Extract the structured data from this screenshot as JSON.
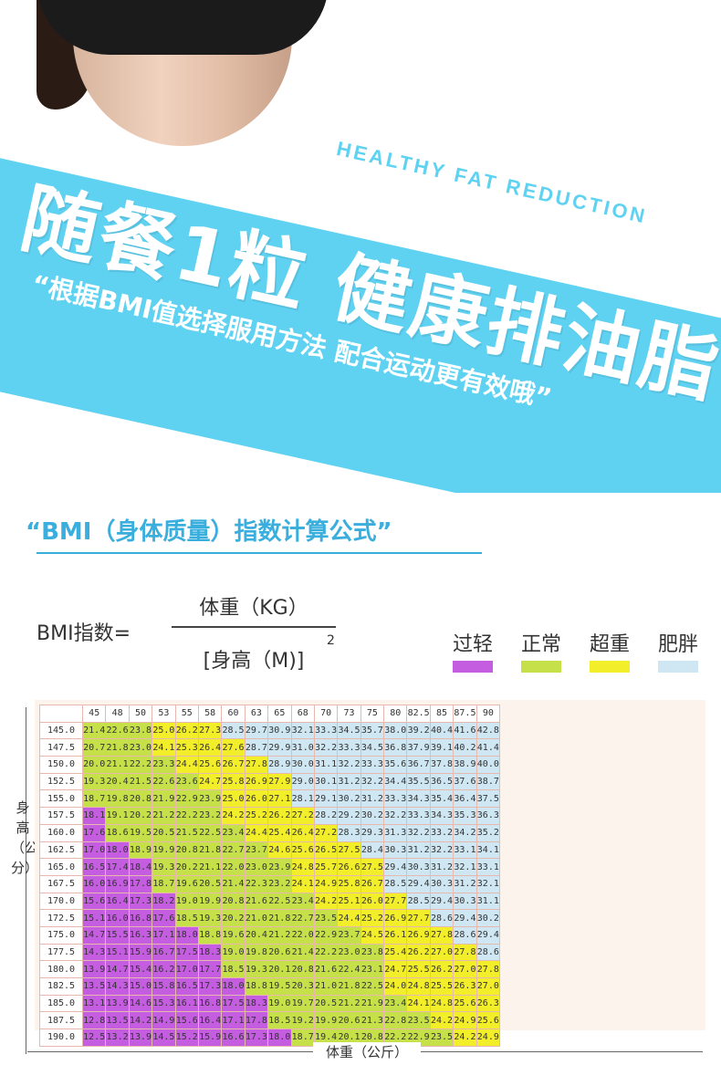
{
  "hero": {
    "english_title": "HEALTHY FAT REDUCTION",
    "main_title": "随餐1粒 健康排油脂",
    "subtitle": "“根据BMI值选择服用方法 配合运动更有效哦”"
  },
  "formula": {
    "section_title": "“BMI（身体质量）指数计算公式”",
    "bmi_label": "BMI指数=",
    "numerator": "体重（KG）",
    "denominator": "[身高（M)]",
    "power": "2"
  },
  "legend": [
    {
      "label": "过轻",
      "color": "#c55de0"
    },
    {
      "label": "正常",
      "color": "#c6e04a"
    },
    {
      "label": "超重",
      "color": "#f3ee2a"
    },
    {
      "label": "肥胖",
      "color": "#cfe7f3"
    }
  ],
  "table": {
    "y_axis_label": "身高（公分）",
    "x_axis_label": "体重（公斤）",
    "weights": [
      "45",
      "48",
      "50",
      "53",
      "55",
      "58",
      "60",
      "63",
      "65",
      "68",
      "70",
      "73",
      "75",
      "80",
      "82.5",
      "85",
      "87.5",
      "90"
    ],
    "rows": [
      {
        "height": "145.0",
        "values": [
          "21.4",
          "22.6",
          "23.8",
          "25.0",
          "26.2",
          "27.3",
          "28.5",
          "29.7",
          "30.9",
          "32.1",
          "33.3",
          "34.5",
          "35.7",
          "38.0",
          "39.2",
          "40.4",
          "41.6",
          "42.8"
        ]
      },
      {
        "height": "147.5",
        "values": [
          "20.7",
          "21.8",
          "23.0",
          "24.1",
          "25.3",
          "26.4",
          "27.6",
          "28.7",
          "29.9",
          "31.0",
          "32.2",
          "33.3",
          "34.5",
          "36.8",
          "37.9",
          "39.1",
          "40.2",
          "41.4"
        ]
      },
      {
        "height": "150.0",
        "values": [
          "20.0",
          "21.1",
          "22.2",
          "23.3",
          "24.4",
          "25.6",
          "26.7",
          "27.8",
          "28.9",
          "30.0",
          "31.1",
          "32.2",
          "33.3",
          "35.6",
          "36.7",
          "37.8",
          "38.9",
          "40.0"
        ]
      },
      {
        "height": "152.5",
        "values": [
          "19.3",
          "20.4",
          "21.5",
          "22.6",
          "23.6",
          "24.7",
          "25.8",
          "26.9",
          "27.9",
          "29.0",
          "30.1",
          "31.2",
          "32.2",
          "34.4",
          "35.5",
          "36.5",
          "37.6",
          "38.7"
        ]
      },
      {
        "height": "155.0",
        "values": [
          "18.7",
          "19.8",
          "20.8",
          "21.9",
          "22.9",
          "23.9",
          "25.0",
          "26.0",
          "27.1",
          "28.1",
          "29.1",
          "30.2",
          "31.2",
          "33.3",
          "34.3",
          "35.4",
          "36.4",
          "37.5"
        ]
      },
      {
        "height": "157.5",
        "values": [
          "18.1",
          "19.1",
          "20.2",
          "21.2",
          "22.2",
          "23.2",
          "24.2",
          "25.2",
          "26.2",
          "27.2",
          "28.2",
          "29.2",
          "30.2",
          "32.2",
          "33.3",
          "34.3",
          "35.3",
          "36.3"
        ]
      },
      {
        "height": "160.0",
        "values": [
          "17.6",
          "18.6",
          "19.5",
          "20.5",
          "21.5",
          "22.5",
          "23.4",
          "24.4",
          "25.4",
          "26.4",
          "27.2",
          "28.3",
          "29.3",
          "31.3",
          "32.2",
          "33.2",
          "34.2",
          "35.2"
        ]
      },
      {
        "height": "162.5",
        "values": [
          "17.0",
          "18.0",
          "18.9",
          "19.9",
          "20.8",
          "21.8",
          "22.7",
          "23.7",
          "24.6",
          "25.6",
          "26.5",
          "27.5",
          "28.4",
          "30.3",
          "31.2",
          "32.2",
          "33.1",
          "34.1"
        ]
      },
      {
        "height": "165.0",
        "values": [
          "16.5",
          "17.4",
          "18.4",
          "19.3",
          "20.2",
          "21.1",
          "22.0",
          "23.0",
          "23.9",
          "24.8",
          "25.7",
          "26.6",
          "27.5",
          "29.4",
          "30.3",
          "31.2",
          "32.1",
          "33.1"
        ]
      },
      {
        "height": "167.5",
        "values": [
          "16.0",
          "16.9",
          "17.8",
          "18.7",
          "19.6",
          "20.5",
          "21.4",
          "22.3",
          "23.2",
          "24.1",
          "24.9",
          "25.8",
          "26.7",
          "28.5",
          "29.4",
          "30.3",
          "31.2",
          "32.1"
        ]
      },
      {
        "height": "170.0",
        "values": [
          "15.6",
          "16.4",
          "17.3",
          "18.2",
          "19.0",
          "19.9",
          "20.8",
          "21.6",
          "22.5",
          "23.4",
          "24.2",
          "25.1",
          "26.0",
          "27.7",
          "28.5",
          "29.4",
          "30.3",
          "31.1"
        ]
      },
      {
        "height": "172.5",
        "values": [
          "15.1",
          "16.0",
          "16.8",
          "17.6",
          "18.5",
          "19.3",
          "20.2",
          "21.0",
          "21.8",
          "22.7",
          "23.5",
          "24.4",
          "25.2",
          "26.9",
          "27.7",
          "28.6",
          "29.4",
          "30.2"
        ]
      },
      {
        "height": "175.0",
        "values": [
          "14.7",
          "15.5",
          "16.3",
          "17.1",
          "18.0",
          "18.8",
          "19.6",
          "20.4",
          "21.2",
          "22.0",
          "22.9",
          "23.7",
          "24.5",
          "26.1",
          "26.9",
          "27.8",
          "28.6",
          "29.4"
        ]
      },
      {
        "height": "177.5",
        "values": [
          "14.3",
          "15.1",
          "15.9",
          "16.7",
          "17.5",
          "18.3",
          "19.0",
          "19.8",
          "20.6",
          "21.4",
          "22.2",
          "23.0",
          "23.8",
          "25.4",
          "26.2",
          "27.0",
          "27.8",
          "28.6"
        ]
      },
      {
        "height": "180.0",
        "values": [
          "13.9",
          "14.7",
          "15.4",
          "16.2",
          "17.0",
          "17.7",
          "18.5",
          "19.3",
          "20.1",
          "20.8",
          "21.6",
          "22.4",
          "23.1",
          "24.7",
          "25.5",
          "26.2",
          "27.0",
          "27.8"
        ]
      },
      {
        "height": "182.5",
        "values": [
          "13.5",
          "14.3",
          "15.0",
          "15.8",
          "16.5",
          "17.3",
          "18.0",
          "18.8",
          "19.5",
          "20.3",
          "21.0",
          "21.8",
          "22.5",
          "24.0",
          "24.8",
          "25.5",
          "26.3",
          "27.0"
        ]
      },
      {
        "height": "185.0",
        "values": [
          "13.1",
          "13.9",
          "14.6",
          "15.3",
          "16.1",
          "16.8",
          "17.5",
          "18.3",
          "19.0",
          "19.7",
          "20.5",
          "21.2",
          "21.9",
          "23.4",
          "24.1",
          "24.8",
          "25.6",
          "26.3"
        ]
      },
      {
        "height": "187.5",
        "values": [
          "12.8",
          "13.5",
          "14.2",
          "14.9",
          "15.6",
          "16.4",
          "17.1",
          "17.8",
          "18.5",
          "19.2",
          "19.9",
          "20.6",
          "21.3",
          "22.8",
          "23.5",
          "24.2",
          "24.9",
          "25.6"
        ]
      },
      {
        "height": "190.0",
        "values": [
          "12.5",
          "13.2",
          "13.9",
          "14.5",
          "15.2",
          "15.9",
          "16.6",
          "17.3",
          "18.0",
          "18.7",
          "19.4",
          "20.1",
          "20.8",
          "22.2",
          "22.9",
          "23.5",
          "24.2",
          "24.9"
        ]
      }
    ]
  }
}
